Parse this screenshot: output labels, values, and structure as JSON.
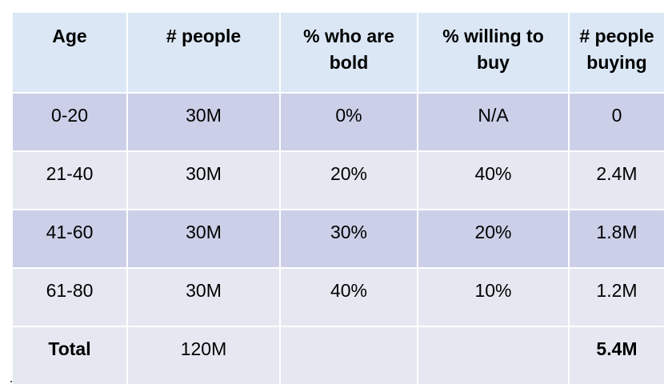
{
  "table": {
    "headers": [
      [
        "Age"
      ],
      [
        "# people"
      ],
      [
        "% who are",
        "bold"
      ],
      [
        "% willing to",
        "buy"
      ],
      [
        "# people",
        "buying"
      ]
    ],
    "rows": [
      {
        "cells": [
          "0-20",
          "30M",
          "0%",
          "N/A",
          "0"
        ],
        "band": "dark"
      },
      {
        "cells": [
          "21-40",
          "30M",
          "20%",
          "40%",
          "2.4M"
        ],
        "band": "light"
      },
      {
        "cells": [
          "41-60",
          "30M",
          "30%",
          "20%",
          "1.8M"
        ],
        "band": "dark"
      },
      {
        "cells": [
          "61-80",
          "30M",
          "40%",
          "10%",
          "1.2M"
        ],
        "band": "light"
      }
    ],
    "total": {
      "label": "Total",
      "people": "120M",
      "bold_pct": "",
      "willing_pct": "",
      "buying": "5.4M"
    }
  },
  "colors": {
    "header_bg": "#dbe7f5",
    "band_dark": "#cccfe8",
    "band_light": "#e6e8f1"
  }
}
